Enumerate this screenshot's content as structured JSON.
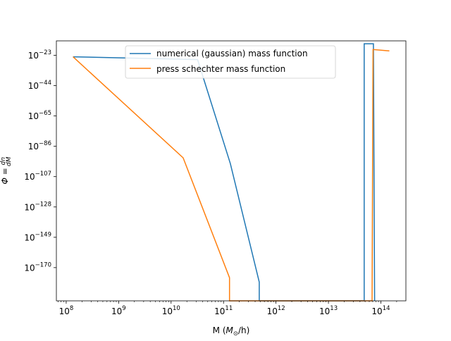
{
  "chart_data": {
    "type": "line",
    "xscale": "log",
    "yscale": "log",
    "xlabel": "M (M⊙/h)",
    "ylabel": "Φ = dn/dM",
    "xlim": [
      65000000,
      300000000000000
    ],
    "ylim": [
      1e-193,
      1e-13
    ],
    "xticks": [
      {
        "value": 100000000.0,
        "base": "10",
        "exp": "8"
      },
      {
        "value": 1000000000.0,
        "base": "10",
        "exp": "9"
      },
      {
        "value": 10000000000.0,
        "base": "10",
        "exp": "10"
      },
      {
        "value": 100000000000.0,
        "base": "10",
        "exp": "11"
      },
      {
        "value": 1000000000000.0,
        "base": "10",
        "exp": "12"
      },
      {
        "value": 10000000000000.0,
        "base": "10",
        "exp": "13"
      },
      {
        "value": 100000000000000.0,
        "base": "10",
        "exp": "14"
      }
    ],
    "yticks": [
      {
        "value": "1e-23",
        "base": "10",
        "exp": "−23"
      },
      {
        "value": "1e-44",
        "base": "10",
        "exp": "−44"
      },
      {
        "value": "1e-65",
        "base": "10",
        "exp": "−65"
      },
      {
        "value": "1e-86",
        "base": "10",
        "exp": "−86"
      },
      {
        "value": "1e-107",
        "base": "10",
        "exp": "−107"
      },
      {
        "value": "1e-128",
        "base": "10",
        "exp": "−128"
      },
      {
        "value": "1e-149",
        "base": "10",
        "exp": "−149"
      },
      {
        "value": "1e-170",
        "base": "10",
        "exp": "−170"
      }
    ],
    "legend": "top-center",
    "grid": false,
    "series": [
      {
        "name": "numerical (gaussian) mass function",
        "color": "#1f77b4",
        "x": [
          135000000.0,
          32000000000.0,
          135000000000.0,
          480000000000.0,
          480000000000.0,
          48000000000000.0,
          48000000000000.0,
          72000000000000.0,
          76000000000000.0
        ],
        "y": [
          "1e-24",
          "1e-26",
          "1e-98",
          "1e-180",
          "1e-193",
          "1e-193",
          "1e-15",
          "1e-15",
          "1e-193"
        ]
      },
      {
        "name": "press schechter mass function",
        "color": "#ff7f0e",
        "x": [
          135000000.0,
          17000000000.0,
          130000000000.0,
          130000000000.0,
          68000000000000.0,
          71000000000000.0,
          145000000000000.0
        ],
        "y": [
          "1e-24",
          "1e-94",
          "1e-177",
          "1e-193",
          "1e-193",
          "1e-19",
          "1e-20"
        ]
      }
    ]
  }
}
